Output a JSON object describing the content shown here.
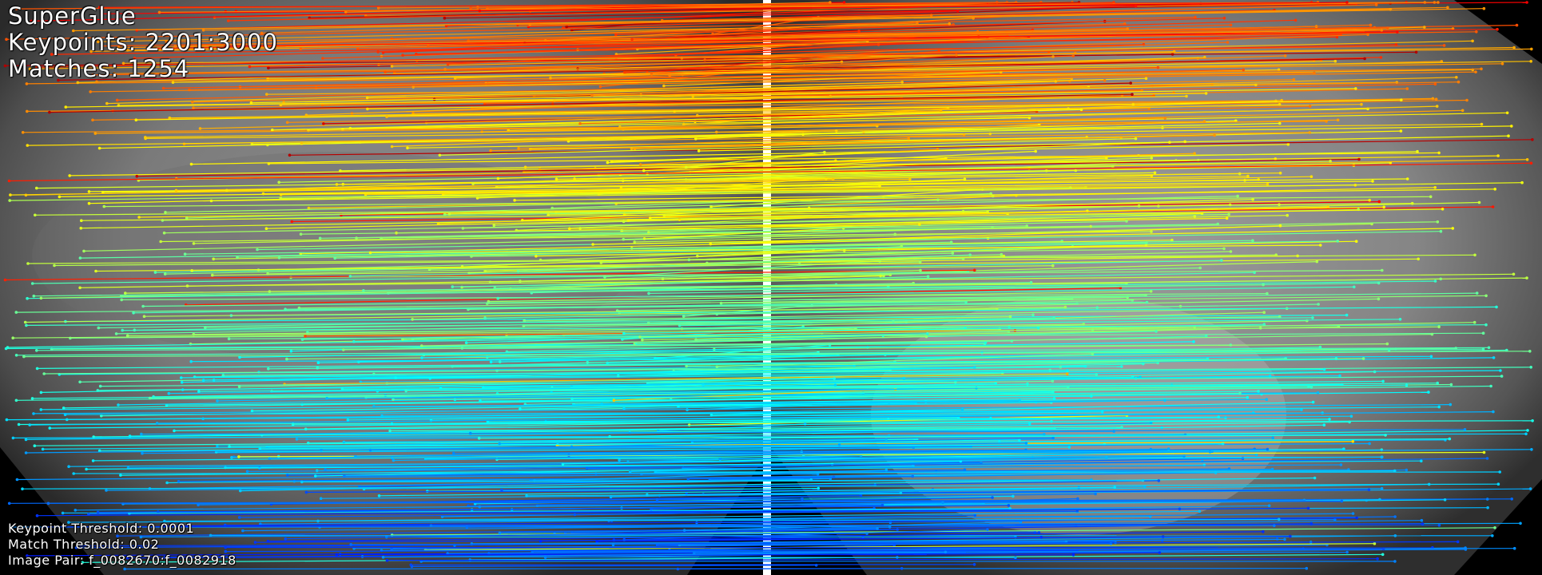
{
  "header": {
    "method": "SuperGlue",
    "keypoints": "Keypoints: 2201:3000",
    "matches": "Matches: 1254"
  },
  "footer": {
    "keypoint_threshold": "Keypoint Threshold: 0.0001",
    "match_threshold": "Match Threshold: 0.02",
    "image_pair": "Image Pair: f_0082670:f_0082918"
  },
  "stats": {
    "keypoints_left": 2201,
    "keypoints_right": 3000,
    "match_count": 1254
  },
  "colormap": "jet",
  "colors": {
    "separator": "#ffffff",
    "background": "#000000"
  }
}
